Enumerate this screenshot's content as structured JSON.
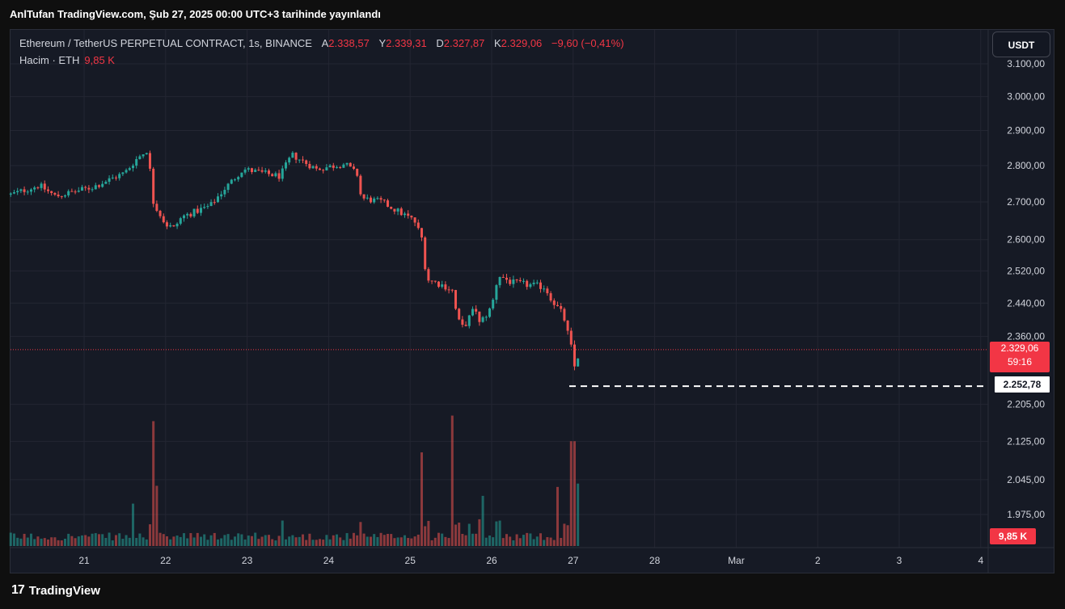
{
  "header": {
    "title": "AnlTufan TradingView.com, Şub 27, 2025 00:00 UTC+3 tarihinde yayınlandı"
  },
  "legend": {
    "symbol": "Ethereum / TetherUS PERPETUAL CONTRACT, 1s, BINANCE",
    "open_label": "A",
    "open": "2.338,57",
    "high_label": "Y",
    "high": "2.339,31",
    "low_label": "D",
    "low": "2.327,87",
    "close_label": "K",
    "close": "2.329,06",
    "change": "−9,60 (−0,41%)"
  },
  "volume_legend": {
    "label": "Hacim · ETH",
    "value": "9,85 K"
  },
  "currency_button": "USDT",
  "price_tag": {
    "price": "2.329,06",
    "countdown": "59:16"
  },
  "line_tag": "2.252,78",
  "volume_tag": "9,85 K",
  "footer": {
    "logo_mark": "17",
    "brand": "TradingView"
  },
  "colors": {
    "up": "#26a69a",
    "down": "#ef5350",
    "background": "#161a25",
    "grid": "#232632"
  },
  "chart_data": {
    "type": "candlestick",
    "y_axis": {
      "ticks": [
        3100,
        3000,
        2900,
        2800,
        2700,
        2600,
        2520,
        2440,
        2360,
        2205,
        2125,
        2045,
        1975
      ],
      "tick_labels": [
        "3.100,00",
        "3.000,00",
        "2.900,00",
        "2.800,00",
        "2.700,00",
        "2.600,00",
        "2.520,00",
        "2.440,00",
        "2.360,00",
        "2.205,00",
        "2.125,00",
        "2.045,00",
        "1.975,00"
      ],
      "scale": "log"
    },
    "x_axis": {
      "ticks": [
        "21",
        "22",
        "23",
        "24",
        "25",
        "26",
        "27",
        "28",
        "Mar",
        "2",
        "3",
        "4"
      ]
    },
    "horizontal_line": 2252.78,
    "last_price": 2329.06,
    "anchors": [
      {
        "x": 0,
        "p": 2720
      },
      {
        "x": 0.35,
        "p": 2745
      },
      {
        "x": 0.55,
        "p": 2715
      },
      {
        "x": 1.0,
        "p": 2740
      },
      {
        "x": 1.4,
        "p": 2780
      },
      {
        "x": 1.55,
        "p": 2820
      },
      {
        "x": 1.68,
        "p": 2845
      },
      {
        "x": 1.75,
        "p": 2700
      },
      {
        "x": 1.9,
        "p": 2640
      },
      {
        "x": 2.0,
        "p": 2630
      },
      {
        "x": 2.1,
        "p": 2660
      },
      {
        "x": 2.45,
        "p": 2690
      },
      {
        "x": 2.6,
        "p": 2730
      },
      {
        "x": 2.85,
        "p": 2790
      },
      {
        "x": 3.3,
        "p": 2770
      },
      {
        "x": 3.45,
        "p": 2830
      },
      {
        "x": 3.75,
        "p": 2790
      },
      {
        "x": 4.1,
        "p": 2805
      },
      {
        "x": 4.25,
        "p": 2775
      },
      {
        "x": 4.3,
        "p": 2710
      },
      {
        "x": 4.55,
        "p": 2700
      },
      {
        "x": 4.95,
        "p": 2650
      },
      {
        "x": 5.05,
        "p": 2600
      },
      {
        "x": 5.1,
        "p": 2500
      },
      {
        "x": 5.35,
        "p": 2480
      },
      {
        "x": 5.42,
        "p": 2470
      },
      {
        "x": 5.48,
        "p": 2400
      },
      {
        "x": 5.55,
        "p": 2380
      },
      {
        "x": 5.7,
        "p": 2430
      },
      {
        "x": 5.75,
        "p": 2390
      },
      {
        "x": 5.9,
        "p": 2430
      },
      {
        "x": 5.98,
        "p": 2510
      },
      {
        "x": 6.15,
        "p": 2490
      },
      {
        "x": 6.55,
        "p": 2480
      },
      {
        "x": 6.65,
        "p": 2445
      },
      {
        "x": 6.78,
        "p": 2410
      },
      {
        "x": 6.88,
        "p": 2330
      },
      {
        "x": 6.93,
        "p": 2275
      },
      {
        "x": 6.97,
        "p": 2329
      }
    ],
    "volume_spikes": [
      {
        "x": 1.74,
        "v": 1.0
      },
      {
        "x": 5.42,
        "v": 1.17
      },
      {
        "x": 6.9,
        "v": 0.82
      },
      {
        "x": 5.03,
        "v": 0.72
      },
      {
        "x": 1.78,
        "v": 0.54
      },
      {
        "x": 1.5,
        "v": 0.38
      },
      {
        "x": 6.72,
        "v": 0.53
      },
      {
        "x": 5.78,
        "v": 0.45
      },
      {
        "x": 6.95,
        "v": 0.44
      }
    ]
  }
}
